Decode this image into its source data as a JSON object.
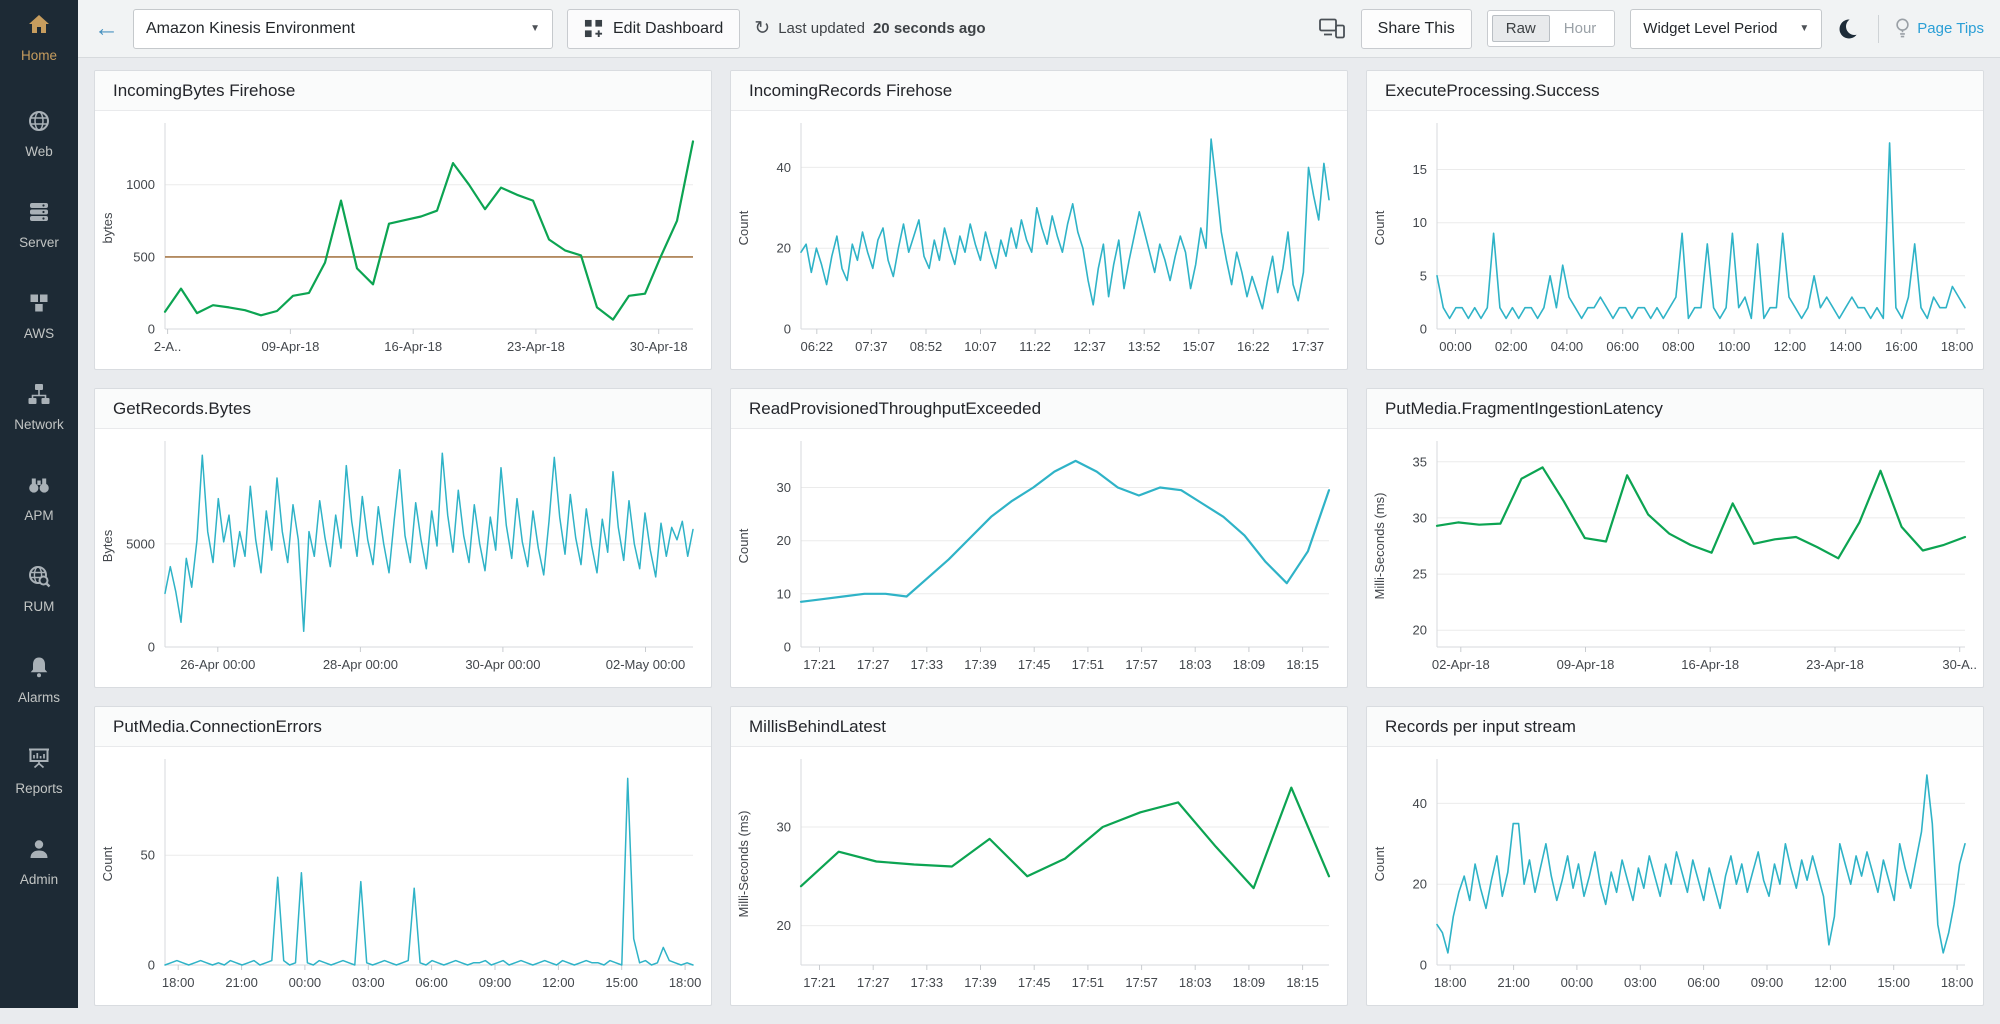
{
  "sidebar": {
    "items": [
      {
        "label": "Home",
        "icon": "home-icon",
        "active": true
      },
      {
        "label": "Web",
        "icon": "web-icon",
        "active": false
      },
      {
        "label": "Server",
        "icon": "server-icon",
        "active": false
      },
      {
        "label": "AWS",
        "icon": "aws-icon",
        "active": false
      },
      {
        "label": "Network",
        "icon": "network-icon",
        "active": false
      },
      {
        "label": "APM",
        "icon": "apm-icon",
        "active": false
      },
      {
        "label": "RUM",
        "icon": "rum-icon",
        "active": false
      },
      {
        "label": "Alarms",
        "icon": "alarms-icon",
        "active": false
      },
      {
        "label": "Reports",
        "icon": "reports-icon",
        "active": false
      },
      {
        "label": "Admin",
        "icon": "admin-icon",
        "active": false
      }
    ]
  },
  "topbar": {
    "back_arrow": "←",
    "environment_select": {
      "value": "Amazon Kinesis Environment"
    },
    "edit_dashboard_label": "Edit Dashboard",
    "last_updated_prefix": "Last updated",
    "last_updated_value": "20 seconds ago",
    "share_this_label": "Share This",
    "raw_hour": {
      "options": [
        "Raw",
        "Hour"
      ],
      "selected": "Raw"
    },
    "widget_period_label": "Widget Level Period",
    "page_tips_label": "Page Tips"
  },
  "colors": {
    "green_line": "#0ca452",
    "teal_line": "#2fb3c7",
    "threshold_line": "#a87a4a",
    "sidebar_bg": "#1d2a35",
    "active_gold": "#c79d5e",
    "page_tips_blue": "#2b9fd6"
  },
  "chart_data": [
    {
      "type": "line",
      "title": "IncomingBytes Firehose",
      "ylabel": "bytes",
      "color": "#0ca452",
      "stroke": 2.2,
      "ylim": [
        0,
        1400
      ],
      "yticks": [
        0,
        500,
        1000
      ],
      "threshold": 500,
      "xticklabels": [
        "2-A..",
        "09-Apr-18",
        "16-Apr-18",
        "23-Apr-18",
        "30-Apr-18"
      ],
      "xtick_range": [
        0.005,
        0.935
      ],
      "values": [
        120,
        280,
        110,
        165,
        150,
        130,
        95,
        125,
        230,
        250,
        460,
        890,
        420,
        310,
        730,
        755,
        780,
        820,
        1150,
        1000,
        830,
        980,
        930,
        890,
        620,
        545,
        510,
        150,
        65,
        230,
        245,
        505,
        750,
        1300
      ]
    },
    {
      "type": "line",
      "title": "IncomingRecords Firehose",
      "ylabel": "Count",
      "color": "#2fb3c7",
      "stroke": 1.6,
      "ylim": [
        0,
        50
      ],
      "yticks": [
        0,
        20,
        40
      ],
      "xticklabels": [
        "06:22",
        "07:37",
        "08:52",
        "10:07",
        "11:22",
        "12:37",
        "13:52",
        "15:07",
        "16:22",
        "17:37"
      ],
      "xtick_range": [
        0.03,
        0.96
      ],
      "values": [
        19,
        21,
        14,
        20,
        16,
        11,
        18,
        23,
        15,
        12,
        21,
        17,
        24,
        19,
        15,
        22,
        25,
        17,
        13,
        20,
        26,
        19,
        23,
        27,
        18,
        15,
        22,
        17,
        25,
        20,
        16,
        23,
        19,
        26,
        21,
        17,
        24,
        19,
        15,
        22,
        18,
        25,
        20,
        27,
        22,
        19,
        30,
        25,
        21,
        28,
        23,
        19,
        26,
        31,
        24,
        20,
        12,
        6,
        15,
        21,
        8,
        16,
        22,
        10,
        17,
        23,
        29,
        24,
        19,
        14,
        21,
        17,
        12,
        18,
        23,
        19,
        10,
        16,
        25,
        20,
        47,
        36,
        24,
        17,
        11,
        19,
        14,
        8,
        13,
        9,
        5,
        12,
        18,
        9,
        15,
        24,
        11,
        7,
        14,
        40,
        33,
        27,
        41,
        32
      ]
    },
    {
      "type": "line",
      "title": "ExecuteProcessing.Success",
      "ylabel": "Count",
      "color": "#2fb3c7",
      "stroke": 1.6,
      "ylim": [
        0,
        19
      ],
      "yticks": [
        0,
        5,
        10,
        15
      ],
      "xticklabels": [
        "00:00",
        "02:00",
        "04:00",
        "06:00",
        "08:00",
        "10:00",
        "12:00",
        "14:00",
        "16:00",
        "18:00"
      ],
      "xtick_range": [
        0.035,
        0.985
      ],
      "values": [
        5,
        2,
        1,
        2,
        2,
        1,
        2,
        1,
        2,
        9,
        2,
        1,
        2,
        1,
        2,
        2,
        1,
        2,
        5,
        2,
        6,
        3,
        2,
        1,
        2,
        2,
        3,
        2,
        1,
        2,
        2,
        1,
        2,
        2,
        1,
        2,
        1,
        2,
        3,
        9,
        1,
        2,
        2,
        8,
        2,
        1,
        2,
        9,
        2,
        3,
        1,
        8,
        1,
        2,
        2,
        9,
        3,
        2,
        1,
        2,
        5,
        2,
        3,
        2,
        1,
        2,
        3,
        2,
        2,
        1,
        2,
        1,
        17.5,
        2,
        1,
        3,
        8,
        2,
        1,
        3,
        2,
        2,
        4,
        3,
        2
      ]
    },
    {
      "type": "line",
      "title": "GetRecords.Bytes",
      "ylabel": "Bytes",
      "color": "#2fb3c7",
      "stroke": 1.5,
      "ylim": [
        0,
        9800
      ],
      "yticks": [
        0,
        5000
      ],
      "xticklabels": [
        "26-Apr 00:00",
        "28-Apr 00:00",
        "30-Apr 00:00",
        "02-May 00:00"
      ],
      "xtick_range": [
        0.1,
        0.91
      ],
      "values": [
        2600,
        3900,
        2700,
        1200,
        4300,
        2900,
        5200,
        9300,
        5600,
        4100,
        7200,
        5100,
        6400,
        3900,
        5600,
        4400,
        7800,
        5200,
        3600,
        6600,
        4700,
        8200,
        5600,
        4100,
        6900,
        5200,
        760,
        5600,
        4400,
        7100,
        5300,
        3900,
        6400,
        4800,
        8800,
        6100,
        4400,
        7300,
        5200,
        4000,
        6800,
        5000,
        3600,
        6200,
        8600,
        5400,
        4100,
        7000,
        5200,
        3800,
        6600,
        4900,
        9400,
        6400,
        4600,
        7600,
        5400,
        4100,
        6900,
        5000,
        3700,
        6300,
        4700,
        8700,
        5900,
        4300,
        7200,
        5100,
        3900,
        6600,
        4800,
        3500,
        6100,
        9200,
        6300,
        4500,
        7400,
        5300,
        4000,
        6700,
        4900,
        3600,
        6200,
        4600,
        8500,
        5800,
        4200,
        7100,
        5000,
        3800,
        6500,
        4700,
        3400,
        6000,
        4400,
        5800,
        5200,
        6100,
        4400,
        5700
      ]
    },
    {
      "type": "line",
      "title": "ReadProvisionedThroughputExceeded",
      "ylabel": "Count",
      "color": "#2fb3c7",
      "stroke": 2.2,
      "ylim": [
        0,
        38
      ],
      "yticks": [
        0,
        10,
        20,
        30
      ],
      "xticklabels": [
        "17:21",
        "17:27",
        "17:33",
        "17:39",
        "17:45",
        "17:51",
        "17:57",
        "18:03",
        "18:09",
        "18:15"
      ],
      "xtick_range": [
        0.035,
        0.95
      ],
      "values": [
        8.5,
        9,
        9.5,
        10,
        10,
        9.5,
        13,
        16.5,
        20.5,
        24.5,
        27.5,
        30,
        33,
        35,
        33,
        30,
        28.5,
        30,
        29.5,
        27,
        24.5,
        21,
        16,
        12,
        18,
        29.5
      ]
    },
    {
      "type": "line",
      "title": "PutMedia.FragmentIngestionLatency",
      "ylabel": "Milli-Seconds (ms)",
      "color": "#0ca452",
      "stroke": 2.2,
      "ylim": [
        18.5,
        36.5
      ],
      "yticks": [
        20,
        25,
        30,
        35
      ],
      "xticklabels": [
        "02-Apr-18",
        "09-Apr-18",
        "16-Apr-18",
        "23-Apr-18",
        "30-A.."
      ],
      "xtick_range": [
        0.045,
        0.99
      ],
      "values": [
        29.3,
        29.6,
        29.4,
        29.5,
        33.5,
        34.5,
        31.5,
        28.2,
        27.9,
        33.8,
        30.3,
        28.6,
        27.6,
        26.9,
        31.3,
        27.7,
        28.1,
        28.3,
        27.4,
        26.4,
        29.6,
        34.2,
        29.2,
        27.1,
        27.6,
        28.3
      ]
    },
    {
      "type": "line",
      "title": "PutMedia.ConnectionErrors",
      "ylabel": "Count",
      "color": "#2fb3c7",
      "stroke": 1.5,
      "ylim": [
        0,
        92
      ],
      "yticks": [
        0,
        50
      ],
      "xticklabels": [
        "18:00",
        "21:00",
        "00:00",
        "03:00",
        "06:00",
        "09:00",
        "12:00",
        "15:00",
        "18:00"
      ],
      "xtick_range": [
        0.025,
        0.985
      ],
      "values": [
        0,
        1,
        2,
        1,
        0,
        1,
        2,
        1,
        0,
        1,
        0,
        2,
        1,
        0,
        1,
        2,
        0,
        1,
        2,
        40,
        2,
        0,
        1,
        42,
        1,
        0,
        2,
        1,
        0,
        1,
        2,
        1,
        0,
        38,
        1,
        0,
        1,
        2,
        1,
        0,
        1,
        2,
        35,
        1,
        0,
        2,
        1,
        0,
        1,
        2,
        1,
        0,
        1,
        1,
        2,
        0,
        1,
        2,
        0,
        1,
        2,
        1,
        0,
        1,
        2,
        1,
        0,
        2,
        1,
        0,
        1,
        2,
        1,
        1,
        0,
        2,
        1,
        0,
        85,
        12,
        1,
        2,
        0,
        1,
        8,
        2,
        1,
        0,
        1,
        0
      ]
    },
    {
      "type": "line",
      "title": "MillisBehindLatest",
      "ylabel": "Milli-Seconds (ms)",
      "color": "#0ca452",
      "stroke": 2.2,
      "ylim": [
        16,
        36.5
      ],
      "yticks": [
        20,
        30
      ],
      "xticklabels": [
        "17:21",
        "17:27",
        "17:33",
        "17:39",
        "17:45",
        "17:51",
        "17:57",
        "18:03",
        "18:09",
        "18:15"
      ],
      "xtick_range": [
        0.035,
        0.95
      ],
      "values": [
        24,
        27.5,
        26.5,
        26.2,
        26,
        28.8,
        25,
        26.8,
        30,
        31.5,
        32.5,
        28,
        23.8,
        34,
        25
      ]
    },
    {
      "type": "line",
      "title": "Records per input stream",
      "ylabel": "Count",
      "color": "#2fb3c7",
      "stroke": 1.6,
      "ylim": [
        0,
        50
      ],
      "yticks": [
        0,
        20,
        40
      ],
      "xticklabels": [
        "18:00",
        "21:00",
        "00:00",
        "03:00",
        "06:00",
        "09:00",
        "12:00",
        "15:00",
        "18:00"
      ],
      "xtick_range": [
        0.025,
        0.985
      ],
      "values": [
        10,
        8,
        3,
        12,
        18,
        22,
        16,
        25,
        19,
        14,
        21,
        27,
        17,
        23,
        35,
        35,
        20,
        26,
        18,
        24,
        30,
        22,
        16,
        21,
        27,
        19,
        25,
        17,
        22,
        28,
        20,
        15,
        23,
        18,
        26,
        21,
        16,
        24,
        19,
        27,
        22,
        17,
        25,
        20,
        28,
        23,
        18,
        26,
        21,
        16,
        24,
        19,
        14,
        22,
        27,
        20,
        25,
        18,
        23,
        28,
        21,
        17,
        25,
        20,
        30,
        24,
        19,
        26,
        21,
        27,
        22,
        17,
        5,
        12,
        30,
        25,
        20,
        27,
        22,
        28,
        23,
        18,
        26,
        21,
        16,
        30,
        24,
        19,
        26,
        33,
        47,
        35,
        10,
        3,
        8,
        15,
        25,
        30
      ]
    }
  ]
}
